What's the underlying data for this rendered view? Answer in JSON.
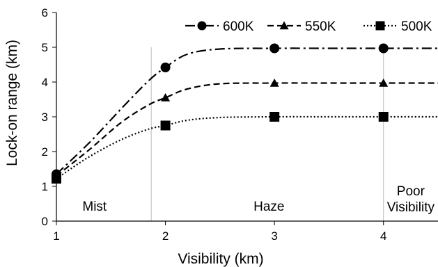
{
  "chart_data": {
    "type": "line",
    "xlabel": "Visibility (km)",
    "ylabel": "Lock-on range (km)",
    "xlim": [
      1,
      4.5
    ],
    "ylim": [
      0,
      6
    ],
    "xticks": [
      1,
      2,
      3,
      4
    ],
    "yticks": [
      0,
      1,
      2,
      3,
      4,
      5,
      6
    ],
    "grid": false,
    "legend_position": "top-right",
    "region_dividers": [
      1.87,
      4
    ],
    "regions": [
      {
        "label": "Mist",
        "x": 1.35
      },
      {
        "label": "Haze",
        "x": 2.95
      },
      {
        "label": "Poor\nVisibility",
        "x": 4.25
      }
    ],
    "series": [
      {
        "name": "600K",
        "marker": "circle",
        "dash": "dashdot",
        "points": [
          [
            1,
            1.35
          ],
          [
            2,
            4.42
          ],
          [
            3,
            4.97
          ],
          [
            4,
            4.97
          ]
        ],
        "curve": [
          [
            1,
            1.35
          ],
          [
            1.3,
            2.25
          ],
          [
            1.6,
            3.25
          ],
          [
            1.85,
            4.05
          ],
          [
            2,
            4.42
          ],
          [
            2.2,
            4.8
          ],
          [
            2.5,
            4.95
          ],
          [
            3,
            4.97
          ],
          [
            3.5,
            4.97
          ],
          [
            4,
            4.97
          ],
          [
            4.5,
            4.97
          ]
        ]
      },
      {
        "name": "550K",
        "marker": "triangle",
        "dash": "dashed",
        "points": [
          [
            1,
            1.3
          ],
          [
            2,
            3.55
          ],
          [
            3,
            3.97
          ],
          [
            4,
            3.97
          ]
        ],
        "curve": [
          [
            1,
            1.3
          ],
          [
            1.3,
            2.05
          ],
          [
            1.6,
            2.85
          ],
          [
            1.85,
            3.35
          ],
          [
            2,
            3.55
          ],
          [
            2.2,
            3.8
          ],
          [
            2.5,
            3.95
          ],
          [
            3,
            3.97
          ],
          [
            3.5,
            3.97
          ],
          [
            4,
            3.97
          ],
          [
            4.5,
            3.97
          ]
        ]
      },
      {
        "name": "500K",
        "marker": "square",
        "dash": "dotted",
        "points": [
          [
            1,
            1.22
          ],
          [
            2,
            2.75
          ],
          [
            3,
            3.0
          ],
          [
            4,
            3.0
          ]
        ],
        "curve": [
          [
            1,
            1.22
          ],
          [
            1.3,
            1.85
          ],
          [
            1.6,
            2.35
          ],
          [
            1.85,
            2.65
          ],
          [
            2,
            2.75
          ],
          [
            2.2,
            2.9
          ],
          [
            2.5,
            2.98
          ],
          [
            3,
            3.0
          ],
          [
            3.5,
            3.0
          ],
          [
            4,
            3.0
          ],
          [
            4.5,
            3.0
          ]
        ]
      }
    ]
  }
}
